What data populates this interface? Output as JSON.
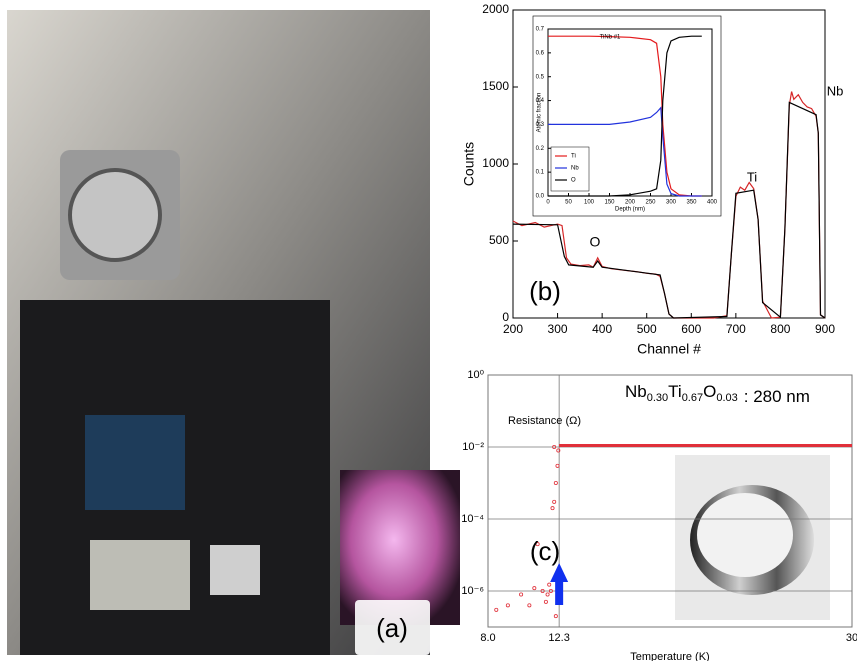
{
  "photo": {
    "label": "(a)"
  },
  "chart_data": [
    {
      "type": "line",
      "xlabel": "Channel #",
      "ylabel": "Counts",
      "xlim": [
        200,
        900
      ],
      "xticks": [
        200,
        300,
        400,
        500,
        600,
        700,
        800,
        900
      ],
      "ylim": [
        0,
        2000
      ],
      "yticks": [
        0,
        500,
        1000,
        1500,
        2000
      ],
      "annotations": [
        "O",
        "Ti",
        "Nb",
        "(b)"
      ],
      "series": [
        {
          "color": "#d62728",
          "x": [
            200,
            220,
            250,
            270,
            300,
            310,
            320,
            330,
            350,
            370,
            380,
            390,
            400,
            420,
            450,
            480,
            500,
            520,
            530,
            540,
            550,
            560,
            600,
            650,
            680,
            690,
            700,
            710,
            720,
            730,
            740,
            750,
            760,
            780,
            800,
            810,
            820,
            825,
            830,
            840,
            850,
            860,
            870,
            880,
            885,
            890,
            900
          ],
          "values": [
            630,
            600,
            620,
            590,
            610,
            600,
            390,
            350,
            340,
            345,
            330,
            390,
            335,
            320,
            310,
            300,
            290,
            285,
            270,
            160,
            25,
            0,
            0,
            0,
            15,
            420,
            790,
            850,
            830,
            880,
            840,
            640,
            110,
            0,
            5,
            580,
            1380,
            1470,
            1420,
            1450,
            1400,
            1370,
            1360,
            1310,
            1200,
            20,
            0
          ]
        },
        {
          "color": "#000000",
          "x": [
            200,
            300,
            315,
            325,
            380,
            390,
            400,
            530,
            540,
            550,
            560,
            680,
            690,
            700,
            740,
            750,
            760,
            800,
            810,
            820,
            880,
            885,
            890,
            900
          ],
          "values": [
            610,
            605,
            400,
            345,
            330,
            370,
            330,
            280,
            160,
            25,
            0,
            10,
            420,
            810,
            830,
            640,
            100,
            5,
            580,
            1400,
            1320,
            1200,
            20,
            0
          ]
        }
      ],
      "inset": {
        "type": "line",
        "title": "TiNb #1",
        "xlabel": "Depth (nm)",
        "ylabel": "Atomic fraction",
        "xlim": [
          0,
          400
        ],
        "xticks": [
          0,
          50,
          100,
          150,
          200,
          250,
          300,
          350,
          400
        ],
        "ylim": [
          0,
          0.7
        ],
        "yticks": [
          {
            "value": 0,
            "label": "0.0"
          },
          0.1,
          0.2,
          0.3,
          0.4,
          0.5,
          0.6,
          0.7
        ],
        "series": [
          {
            "name": "Ti",
            "color": "#e41a1c",
            "x": [
              0,
              50,
              100,
              150,
              200,
              250,
              265,
              275,
              280,
              290,
              300,
              320,
              350,
              375
            ],
            "values": [
              0.67,
              0.67,
              0.67,
              0.668,
              0.665,
              0.655,
              0.64,
              0.5,
              0.3,
              0.1,
              0.03,
              0.005,
              0,
              0
            ]
          },
          {
            "name": "Nb",
            "color": "#2233dd",
            "x": [
              0,
              50,
              100,
              150,
              200,
              250,
              265,
              275,
              280,
              290,
              300,
              320,
              350,
              375
            ],
            "values": [
              0.3,
              0.3,
              0.3,
              0.3,
              0.31,
              0.33,
              0.35,
              0.37,
              0.25,
              0.05,
              0.01,
              0,
              0,
              0
            ]
          },
          {
            "name": "O",
            "color": "#000000",
            "x": [
              0,
              50,
              100,
              150,
              200,
              250,
              265,
              275,
              280,
              290,
              300,
              320,
              350,
              375
            ],
            "values": [
              0,
              0,
              0,
              0,
              0.005,
              0.02,
              0.03,
              0.15,
              0.4,
              0.6,
              0.65,
              0.665,
              0.67,
              0.67
            ]
          }
        ]
      }
    },
    {
      "type": "scatter",
      "log_y": true,
      "grid": true,
      "xlabel": "Temperature (K)",
      "annotations": [
        "Resistance (Ω)",
        "(c)"
      ],
      "formula": [
        "Nb",
        "0.30",
        "Ti",
        "0.67",
        "O",
        "0.03"
      ],
      "formula_suffix": ":  280 nm",
      "xlim": [
        8,
        30
      ],
      "xticks": [
        {
          "value": 8,
          "label": "8.0"
        },
        12.3,
        30
      ],
      "ylim": [
        1e-07,
        1
      ],
      "yticks": [
        {
          "value": 1,
          "label": "10⁰"
        },
        {
          "value": 0.01,
          "label": "10⁻²"
        },
        {
          "value": 0.0001,
          "label": "10⁻⁴"
        },
        {
          "value": 1e-06,
          "label": "10⁻⁶"
        }
      ],
      "series": [
        {
          "type": "scatter",
          "color": "#e0303a",
          "x": [
            8.5,
            9.2,
            10.0,
            10.5,
            11.0,
            11.3,
            11.5,
            11.6,
            11.8,
            11.9,
            12.0,
            12.0,
            12.1,
            12.1,
            12.2,
            12.25,
            10.8,
            11.7
          ],
          "values": [
            3e-07,
            4e-07,
            8e-07,
            4e-07,
            2e-05,
            1e-06,
            5e-07,
            8e-07,
            1e-06,
            0.0002,
            0.0003,
            0.01,
            0.001,
            2e-07,
            0.003,
            0.008,
            1.2e-06,
            1.5e-06
          ]
        },
        {
          "type": "line",
          "color": "#e0303a",
          "x": [
            12.3,
            12.5,
            15,
            20,
            25,
            30
          ],
          "values": [
            0.011,
            0.011,
            0.011,
            0.011,
            0.011,
            0.011
          ]
        }
      ]
    }
  ]
}
